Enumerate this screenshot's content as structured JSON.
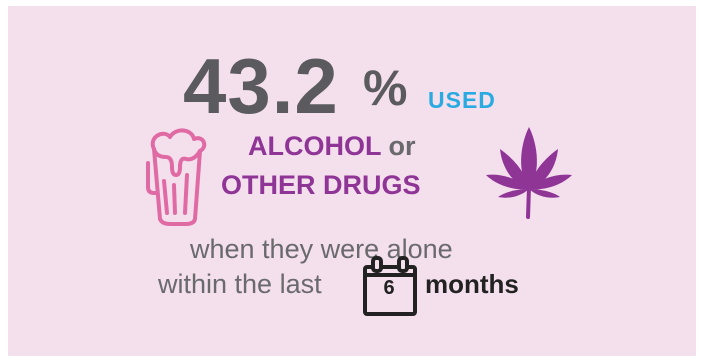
{
  "stat": {
    "value": "43.2",
    "percent_sign": "%",
    "used_label": "USED"
  },
  "substances": {
    "alcohol": "ALCOHOL",
    "or": "or",
    "other_drugs": "OTHER DRUGS"
  },
  "context": {
    "line1": "when they were alone",
    "line2": "within the last",
    "calendar_number": "6",
    "months": "months"
  },
  "colors": {
    "background": "#f4dfed",
    "stat": "#5b5b5f",
    "used": "#29abe2",
    "accent_purple": "#8e3596",
    "beer_icon": "#e06ba4",
    "text_gray": "#6a6a6e",
    "dark": "#222222"
  },
  "icons": {
    "beer": "beer-glass-icon",
    "leaf": "cannabis-leaf-icon",
    "calendar": "calendar-icon"
  }
}
